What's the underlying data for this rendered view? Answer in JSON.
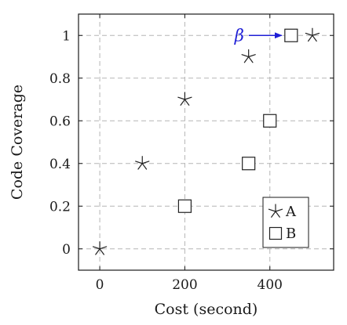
{
  "chart_data": {
    "type": "scatter",
    "xlabel": "Cost (second)",
    "ylabel": "Code Coverage",
    "xlim": [
      -50,
      550
    ],
    "ylim": [
      -0.1,
      1.1
    ],
    "xticks": [
      0,
      200,
      400
    ],
    "xtick_labels": [
      "0",
      "200",
      "400"
    ],
    "yticks": [
      0,
      0.2,
      0.4,
      0.6,
      0.8,
      1
    ],
    "ytick_labels": [
      "0",
      "0.2",
      "0.4",
      "0.6",
      "0.8",
      "1"
    ],
    "grid": true,
    "grid_style": "dashed",
    "legend_position": "bottom-right",
    "series": [
      {
        "name": "A",
        "marker": "asterisk",
        "color": "#222222",
        "points": [
          {
            "x": 0,
            "y": 0
          },
          {
            "x": 100,
            "y": 0.4
          },
          {
            "x": 200,
            "y": 0.7
          },
          {
            "x": 350,
            "y": 0.9
          },
          {
            "x": 500,
            "y": 1
          }
        ]
      },
      {
        "name": "B",
        "marker": "square",
        "color": "#222222",
        "points": [
          {
            "x": 200,
            "y": 0.2
          },
          {
            "x": 350,
            "y": 0.4
          },
          {
            "x": 400,
            "y": 0.6
          },
          {
            "x": 450,
            "y": 1
          }
        ]
      }
    ],
    "annotations": [
      {
        "text": "β",
        "target_series": "B",
        "target_x": 450,
        "target_y": 1,
        "color": "#1f1fd6"
      }
    ]
  }
}
